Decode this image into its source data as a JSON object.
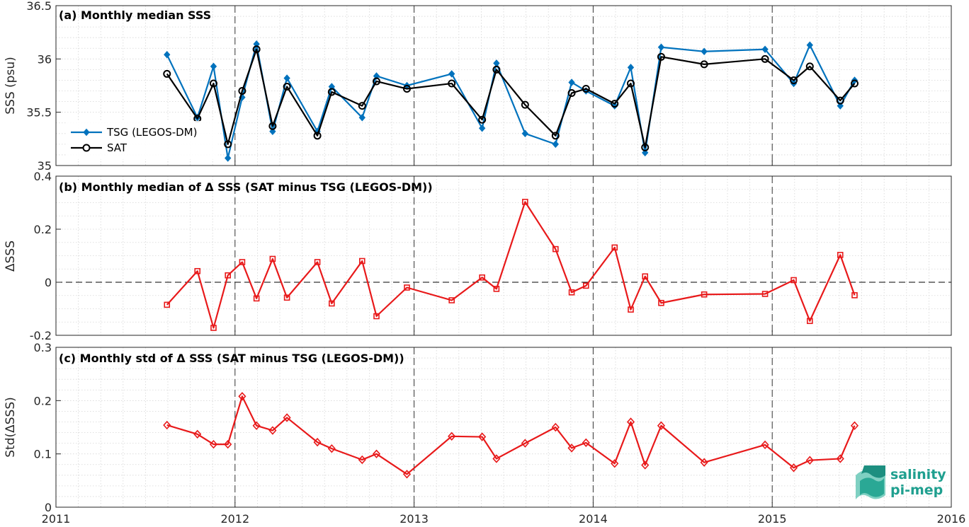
{
  "logo": {
    "line1": "salinity",
    "line2": "pi-mep"
  },
  "colors": {
    "tsg": "#0072BD",
    "sat": "#000000",
    "delta": "#E8191A"
  },
  "chart_data": [
    {
      "type": "line",
      "title": "(a) Monthly median SSS",
      "ylabel": "SSS (psu)",
      "xlim": [
        2011,
        2016
      ],
      "ylim": [
        35,
        36.5
      ],
      "yticks": [
        "35",
        "35.5",
        "36",
        "36.5"
      ],
      "ytick_values": [
        35,
        35.5,
        36,
        36.5
      ],
      "xticks": [
        "2011",
        "2012",
        "2013",
        "2014",
        "2015",
        "2016"
      ],
      "grid": true,
      "legend_position": "left",
      "x": [
        2011.62,
        2011.79,
        2011.88,
        2011.96,
        2012.04,
        2012.12,
        2012.21,
        2012.29,
        2012.46,
        2012.54,
        2012.71,
        2012.79,
        2012.96,
        2013.21,
        2013.38,
        2013.46,
        2013.62,
        2013.79,
        2013.88,
        2013.96,
        2014.12,
        2014.21,
        2014.29,
        2014.38,
        2014.62,
        2014.96,
        2015.12,
        2015.21,
        2015.38,
        2015.46
      ],
      "series": [
        {
          "name": "TSG (LEGOS-DM)",
          "marker": "diamond-filled",
          "values": [
            36.04,
            35.45,
            35.93,
            35.07,
            35.64,
            36.14,
            35.32,
            35.82,
            35.32,
            35.74,
            35.45,
            35.84,
            35.75,
            35.86,
            35.35,
            35.96,
            35.3,
            35.2,
            35.78,
            35.7,
            35.56,
            35.92,
            35.12,
            36.11,
            36.07,
            36.09,
            35.77,
            36.13,
            35.56,
            35.8
          ]
        },
        {
          "name": "SAT",
          "marker": "circle-open",
          "values": [
            35.86,
            35.44,
            35.77,
            35.2,
            35.7,
            36.09,
            35.37,
            35.74,
            35.28,
            35.69,
            35.56,
            35.79,
            35.72,
            35.77,
            35.43,
            35.9,
            35.57,
            35.28,
            35.68,
            35.72,
            35.58,
            35.77,
            35.17,
            36.02,
            35.95,
            36.0,
            35.8,
            35.93,
            35.61,
            35.77
          ]
        }
      ]
    },
    {
      "type": "line",
      "title": "(b) Monthly median of Δ SSS (SAT minus TSG (LEGOS-DM))",
      "ylabel": "ΔSSS",
      "xlim": [
        2011,
        2016
      ],
      "ylim": [
        -0.2,
        0.4
      ],
      "yticks": [
        "-0.2",
        "0",
        "0.2",
        "0.4"
      ],
      "ytick_values": [
        -0.2,
        0,
        0.2,
        0.4
      ],
      "grid": true,
      "zero_line": "dashed",
      "x": [
        2011.62,
        2011.79,
        2011.88,
        2011.96,
        2012.04,
        2012.12,
        2012.21,
        2012.29,
        2012.46,
        2012.54,
        2012.71,
        2012.79,
        2012.96,
        2013.21,
        2013.38,
        2013.46,
        2013.62,
        2013.79,
        2013.88,
        2013.96,
        2014.12,
        2014.21,
        2014.29,
        2014.38,
        2014.62,
        2014.96,
        2015.12,
        2015.21,
        2015.38,
        2015.46
      ],
      "series": [
        {
          "marker": "square-open",
          "values": [
            -0.085,
            0.042,
            -0.172,
            0.026,
            0.076,
            -0.061,
            0.088,
            -0.058,
            0.076,
            -0.08,
            0.08,
            -0.128,
            -0.02,
            -0.068,
            0.018,
            -0.025,
            0.303,
            0.125,
            -0.038,
            -0.013,
            0.131,
            -0.103,
            0.022,
            -0.078,
            -0.046,
            -0.044,
            0.008,
            -0.146,
            0.103,
            -0.049
          ]
        }
      ]
    },
    {
      "type": "line",
      "title": "(c) Monthly std of Δ SSS (SAT minus TSG (LEGOS-DM))",
      "ylabel": "Std(ΔSSS)",
      "xlim": [
        2011,
        2016
      ],
      "ylim": [
        0,
        0.3
      ],
      "yticks": [
        "0",
        "0.1",
        "0.2",
        "0.3"
      ],
      "ytick_values": [
        0,
        0.1,
        0.2,
        0.3
      ],
      "xticks": [
        "2011",
        "2012",
        "2013",
        "2014",
        "2015",
        "2016"
      ],
      "grid": true,
      "x": [
        2011.62,
        2011.79,
        2011.88,
        2011.96,
        2012.04,
        2012.12,
        2012.21,
        2012.29,
        2012.46,
        2012.54,
        2012.71,
        2012.79,
        2012.96,
        2013.21,
        2013.38,
        2013.46,
        2013.62,
        2013.79,
        2013.88,
        2013.96,
        2014.12,
        2014.21,
        2014.29,
        2014.38,
        2014.62,
        2014.96,
        2015.12,
        2015.21,
        2015.38,
        2015.46
      ],
      "series": [
        {
          "marker": "diamond-open",
          "values": [
            0.154,
            0.137,
            0.118,
            0.118,
            0.208,
            0.153,
            0.144,
            0.168,
            0.122,
            0.11,
            0.089,
            0.1,
            0.062,
            0.133,
            0.132,
            0.091,
            0.12,
            0.15,
            0.111,
            0.121,
            0.082,
            0.16,
            0.079,
            0.153,
            0.084,
            0.117,
            0.074,
            0.088,
            0.091,
            0.153
          ]
        }
      ]
    }
  ]
}
